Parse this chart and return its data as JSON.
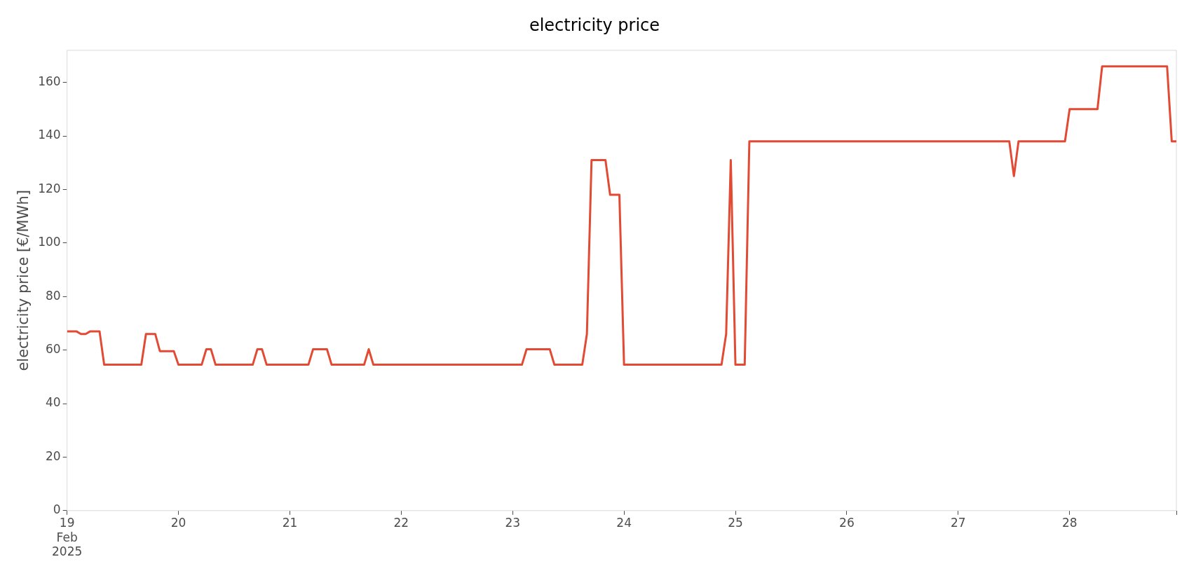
{
  "chart_data": {
    "type": "line",
    "title": "electricity price",
    "ylabel": "electricity price [€/MWh]",
    "xticks": [
      {
        "value": "2025-02-19T00:00",
        "label": "19\nFeb\n2025"
      },
      {
        "value": "2025-02-20T00:00",
        "label": "20"
      },
      {
        "value": "2025-02-21T00:00",
        "label": "21"
      },
      {
        "value": "2025-02-22T00:00",
        "label": "22"
      },
      {
        "value": "2025-02-23T00:00",
        "label": "23"
      },
      {
        "value": "2025-02-24T00:00",
        "label": "24"
      },
      {
        "value": "2025-02-25T00:00",
        "label": "25"
      },
      {
        "value": "2025-02-26T00:00",
        "label": "26"
      },
      {
        "value": "2025-02-27T00:00",
        "label": "27"
      },
      {
        "value": "2025-02-28T00:00",
        "label": "28"
      },
      {
        "value": "2025-02-28T23:00",
        "label": null
      }
    ],
    "xlim": [
      "2025-02-19T00:00",
      "2025-02-28T23:00"
    ],
    "ylim": [
      0,
      172
    ],
    "yticks": [
      0,
      20,
      40,
      60,
      80,
      100,
      120,
      140,
      160
    ],
    "legend": false,
    "series": [
      {
        "color": "#e24a33",
        "x": [
          "2025-02-19T00:00",
          "2025-02-19T02:00",
          "2025-02-19T03:00",
          "2025-02-19T04:00",
          "2025-02-19T05:00",
          "2025-02-19T07:00",
          "2025-02-19T08:00",
          "2025-02-19T16:00",
          "2025-02-19T17:00",
          "2025-02-19T19:00",
          "2025-02-19T20:00",
          "2025-02-19T23:00",
          "2025-02-20T00:00",
          "2025-02-20T05:00",
          "2025-02-20T06:00",
          "2025-02-20T07:00",
          "2025-02-20T08:00",
          "2025-02-20T16:00",
          "2025-02-20T17:00",
          "2025-02-20T18:00",
          "2025-02-20T19:00",
          "2025-02-21T04:00",
          "2025-02-21T05:00",
          "2025-02-21T08:00",
          "2025-02-21T09:00",
          "2025-02-21T16:00",
          "2025-02-21T17:00",
          "2025-02-21T18:00",
          "2025-02-23T02:00",
          "2025-02-23T03:00",
          "2025-02-23T08:00",
          "2025-02-23T09:00",
          "2025-02-23T15:00",
          "2025-02-23T16:00",
          "2025-02-23T17:00",
          "2025-02-23T20:00",
          "2025-02-23T21:00",
          "2025-02-23T23:00",
          "2025-02-24T00:00",
          "2025-02-24T21:00",
          "2025-02-24T22:00",
          "2025-02-24T23:00",
          "2025-02-25T00:00",
          "2025-02-25T02:00",
          "2025-02-25T03:00",
          "2025-02-27T11:00",
          "2025-02-27T12:00",
          "2025-02-27T13:00",
          "2025-02-27T23:00",
          "2025-02-28T00:00",
          "2025-02-28T06:00",
          "2025-02-28T07:00",
          "2025-02-28T21:00",
          "2025-02-28T22:00",
          "2025-02-28T23:00"
        ],
        "values": [
          67,
          67,
          66,
          66,
          67,
          67,
          54.5,
          54.5,
          66,
          66,
          59.6,
          59.6,
          54.5,
          54.5,
          60.3,
          60.3,
          54.5,
          54.5,
          60.3,
          60.3,
          54.5,
          54.5,
          60.3,
          60.3,
          54.5,
          54.5,
          60.3,
          54.5,
          54.5,
          60.3,
          60.3,
          54.5,
          54.5,
          66,
          131,
          131,
          118,
          118,
          54.5,
          54.5,
          66,
          131,
          54.5,
          54.5,
          138,
          138,
          125,
          138,
          138,
          150,
          150,
          166,
          166,
          138,
          138
        ]
      }
    ]
  }
}
